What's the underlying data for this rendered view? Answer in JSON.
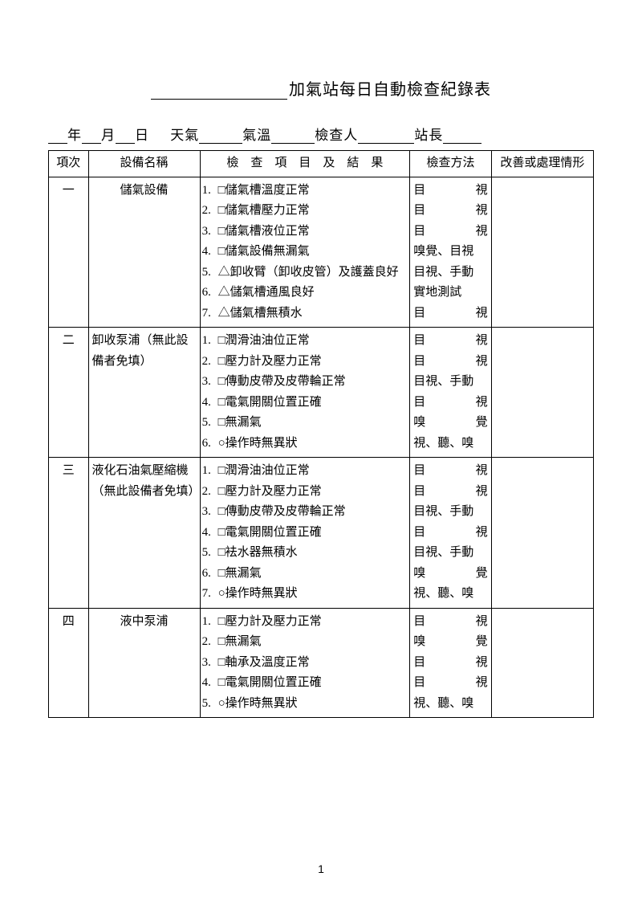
{
  "title_suffix": "加氣站每日自動檢查紀錄表",
  "meta": {
    "year": "年",
    "month": "月",
    "day": "日",
    "weather": "天氣",
    "temp": "氣溫",
    "inspector": "檢查人",
    "chief": "站長"
  },
  "headers": {
    "seq": "項次",
    "name": "設備名稱",
    "items": "檢　查　項　目　及　結　果",
    "method": "檢查方法",
    "improve": "改善或處理情形"
  },
  "rows": [
    {
      "seq": "一",
      "name": "儲氣設備",
      "name_align": "center",
      "items": [
        "1.□儲氣槽溫度正常",
        "2.□儲氣槽壓力正常",
        "3.□儲氣槽液位正常",
        "4.□儲氣設備無漏氣",
        "5.△卸收臂（卸收皮管）及護蓋良好",
        "6.△儲氣槽通風良好",
        "7.△儲氣槽無積水"
      ],
      "methods": [
        [
          "目",
          "視"
        ],
        [
          "目",
          "視"
        ],
        [
          "目",
          "視"
        ],
        "嗅覺、目視",
        "目視、手動",
        "實地測試",
        [
          "目",
          "視"
        ]
      ]
    },
    {
      "seq": "二",
      "name": "卸收泵浦（無此設備者免填）",
      "name_align": "left",
      "items": [
        "1.□潤滑油油位正常",
        "2.□壓力計及壓力正常",
        "3.□傳動皮帶及皮帶輪正常",
        "4.□電氣開關位置正確",
        "5.□無漏氣",
        "6.○操作時無異狀"
      ],
      "methods": [
        [
          "目",
          "視"
        ],
        [
          "目",
          "視"
        ],
        "目視、手動",
        [
          "目",
          "視"
        ],
        [
          "嗅",
          "覺"
        ],
        "視、聽、嗅"
      ]
    },
    {
      "seq": "三",
      "name": "液化石油氣壓縮機（無此設備者免填）",
      "name_align": "left",
      "items": [
        "1.□潤滑油油位正常",
        "2.□壓力計及壓力正常",
        "3.□傳動皮帶及皮帶輪正常",
        "4.□電氣開關位置正確",
        "5.□袪水器無積水",
        "6.□無漏氣",
        "7.○操作時無異狀"
      ],
      "methods": [
        [
          "目",
          "視"
        ],
        [
          "目",
          "視"
        ],
        "目視、手動",
        [
          "目",
          "視"
        ],
        "目視、手動",
        [
          "嗅",
          "覺"
        ],
        "視、聽、嗅"
      ]
    },
    {
      "seq": "四",
      "name": "液中泵浦",
      "name_align": "center",
      "items": [
        "1.□壓力計及壓力正常",
        "2.□無漏氣",
        "3.□軸承及溫度正常",
        "4.□電氣開關位置正確",
        "5.○操作時無異狀"
      ],
      "methods": [
        [
          "目",
          "視"
        ],
        [
          "嗅",
          "覺"
        ],
        [
          "目",
          "視"
        ],
        [
          "目",
          "視"
        ],
        "視、聽、嗅"
      ]
    }
  ],
  "page_number": "1"
}
